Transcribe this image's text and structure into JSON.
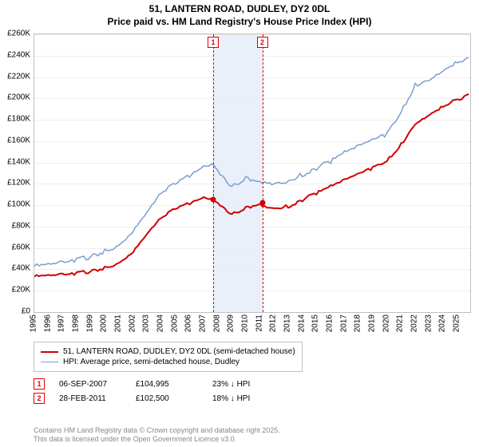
{
  "title_line1": "51, LANTERN ROAD, DUDLEY, DY2 0DL",
  "title_line2": "Price paid vs. HM Land Registry's House Price Index (HPI)",
  "chart": {
    "type": "line",
    "x_min_year": 1995,
    "x_max_year": 2025.9,
    "y_min": 0,
    "y_max": 260000,
    "y_tick_step": 20000,
    "y_tick_labels": [
      "£0",
      "£20K",
      "£40K",
      "£60K",
      "£80K",
      "£100K",
      "£120K",
      "£140K",
      "£160K",
      "£180K",
      "£200K",
      "£220K",
      "£240K",
      "£260K"
    ],
    "x_ticks": [
      1995,
      1996,
      1997,
      1998,
      1999,
      2000,
      2001,
      2002,
      2003,
      2004,
      2005,
      2006,
      2007,
      2008,
      2009,
      2010,
      2011,
      2012,
      2013,
      2014,
      2015,
      2016,
      2017,
      2018,
      2019,
      2020,
      2021,
      2022,
      2023,
      2024,
      2025
    ],
    "background_color": "#ffffff",
    "grid_color": "#eeeeee",
    "border_color": "#c0c0c0",
    "band": {
      "start_year": 2007.68,
      "end_year": 2011.16,
      "color": "#eaf0fa"
    },
    "series": [
      {
        "name": "price_paid",
        "color": "#d00000",
        "line_width": 2,
        "points": [
          [
            1995,
            34000
          ],
          [
            1996,
            34500
          ],
          [
            1997,
            35500
          ],
          [
            1998,
            37000
          ],
          [
            1999,
            39000
          ],
          [
            2000,
            42000
          ],
          [
            2001,
            47000
          ],
          [
            2002,
            58000
          ],
          [
            2003,
            75000
          ],
          [
            2004,
            90000
          ],
          [
            2005,
            98000
          ],
          [
            2006,
            102000
          ],
          [
            2007,
            107000
          ],
          [
            2007.68,
            104995
          ],
          [
            2008,
            102000
          ],
          [
            2009,
            92000
          ],
          [
            2010,
            98000
          ],
          [
            2011,
            102500
          ],
          [
            2011.5,
            99000
          ],
          [
            2012,
            98000
          ],
          [
            2013,
            100000
          ],
          [
            2014,
            106000
          ],
          [
            2015,
            112000
          ],
          [
            2016,
            118000
          ],
          [
            2017,
            124000
          ],
          [
            2018,
            130000
          ],
          [
            2019,
            136000
          ],
          [
            2020,
            142000
          ],
          [
            2021,
            158000
          ],
          [
            2022,
            178000
          ],
          [
            2023,
            186000
          ],
          [
            2024,
            194000
          ],
          [
            2025,
            200000
          ],
          [
            2025.8,
            204000
          ]
        ]
      },
      {
        "name": "hpi",
        "color": "#7a9ecf",
        "line_width": 1.5,
        "points": [
          [
            1995,
            44000
          ],
          [
            1996,
            45000
          ],
          [
            1997,
            47000
          ],
          [
            1998,
            50000
          ],
          [
            1999,
            53000
          ],
          [
            2000,
            58000
          ],
          [
            2001,
            64000
          ],
          [
            2002,
            78000
          ],
          [
            2003,
            96000
          ],
          [
            2004,
            114000
          ],
          [
            2005,
            122000
          ],
          [
            2006,
            128000
          ],
          [
            2007,
            136000
          ],
          [
            2007.7,
            138000
          ],
          [
            2008,
            132000
          ],
          [
            2009,
            118000
          ],
          [
            2010,
            126000
          ],
          [
            2011,
            124000
          ],
          [
            2012,
            122000
          ],
          [
            2013,
            124000
          ],
          [
            2014,
            130000
          ],
          [
            2015,
            136000
          ],
          [
            2016,
            142000
          ],
          [
            2017,
            150000
          ],
          [
            2018,
            156000
          ],
          [
            2019,
            162000
          ],
          [
            2020,
            168000
          ],
          [
            2021,
            188000
          ],
          [
            2022,
            214000
          ],
          [
            2023,
            220000
          ],
          [
            2024,
            228000
          ],
          [
            2025,
            236000
          ],
          [
            2025.8,
            238000
          ]
        ]
      }
    ],
    "markers": [
      {
        "n": "1",
        "year": 2007.68,
        "value": 104995
      },
      {
        "n": "2",
        "year": 2011.16,
        "value": 102500
      }
    ],
    "marker_dot_color": "#d00000",
    "marker_box_border": "#d00000"
  },
  "legend": {
    "items": [
      {
        "color": "#d00000",
        "width": 2,
        "label": "51, LANTERN ROAD, DUDLEY, DY2 0DL (semi-detached house)"
      },
      {
        "color": "#7a9ecf",
        "width": 1.5,
        "label": "HPI: Average price, semi-detached house, Dudley"
      }
    ]
  },
  "sales": [
    {
      "n": "1",
      "date": "06-SEP-2007",
      "price": "£104,995",
      "hpi_rel": "23% ↓ HPI"
    },
    {
      "n": "2",
      "date": "28-FEB-2011",
      "price": "£102,500",
      "hpi_rel": "18% ↓ HPI"
    }
  ],
  "footer_line1": "Contains HM Land Registry data © Crown copyright and database right 2025.",
  "footer_line2": "This data is licensed under the Open Government Licence v3.0."
}
